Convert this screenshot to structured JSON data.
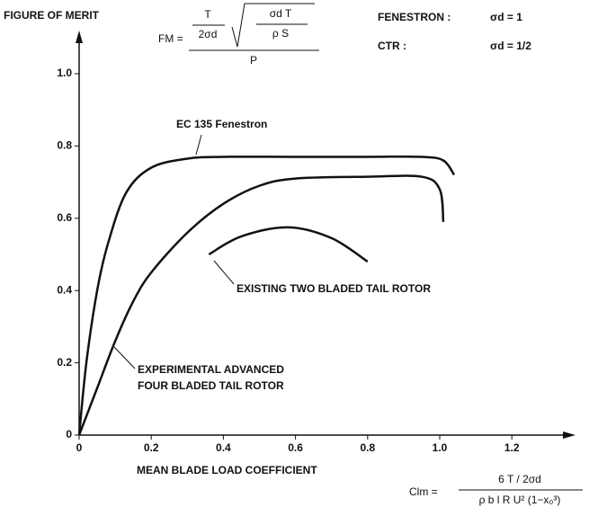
{
  "chart_data": {
    "type": "line",
    "y_label": "FIGURE OF MERIT",
    "x_label": "MEAN BLADE LOAD COEFFICIENT",
    "xlim": [
      0,
      1.36
    ],
    "ylim": [
      0,
      1.1
    ],
    "xticks": [
      0,
      0.2,
      0.4,
      0.6,
      0.8,
      {
        "value": 1,
        "label": "1.0"
      },
      1.2
    ],
    "yticks": [
      0,
      0.2,
      0.4,
      0.6,
      0.8,
      {
        "value": 1,
        "label": "1.0"
      }
    ],
    "color": "#111111",
    "series": [
      {
        "x": [
          0,
          0.02,
          0.05,
          0.08,
          0.13,
          0.2,
          0.3,
          0.4,
          0.6,
          0.8,
          0.95,
          1.01,
          1.04
        ],
        "values": [
          0,
          0.2,
          0.4,
          0.53,
          0.67,
          0.74,
          0.765,
          0.77,
          0.77,
          0.77,
          0.77,
          0.76,
          0.72
        ]
      },
      {
        "x": [
          0,
          0.05,
          0.1,
          0.15,
          0.2,
          0.3,
          0.4,
          0.5,
          0.6,
          0.8,
          0.95,
          1.0,
          1.01
        ],
        "values": [
          0,
          0.13,
          0.26,
          0.37,
          0.45,
          0.56,
          0.64,
          0.69,
          0.71,
          0.715,
          0.715,
          0.68,
          0.59
        ]
      },
      {
        "x": [
          0.36,
          0.45,
          0.58,
          0.7,
          0.8
        ],
        "values": [
          0.5,
          0.55,
          0.575,
          0.545,
          0.48
        ]
      }
    ],
    "annotations": [
      "EC 135 Fenestron",
      "EXISTING TWO BLADED TAIL ROTOR",
      "EXPERIMENTAL ADVANCED",
      "FOUR BLADED TAIL ROTOR"
    ],
    "formula_fm": {
      "lhs": "FM =",
      "num": "T",
      "num_den": "2σd",
      "root_num": "σd T",
      "root_den": "ρ S",
      "den": "P"
    },
    "sigma_notes": [
      {
        "name": "FENESTRON :",
        "value": "σd = 1"
      },
      {
        "name": "CTR :",
        "value": "σd = 1/2"
      }
    ],
    "formula_clm": {
      "lhs": "Clm =",
      "num": "6 T / 2σd",
      "den": "ρ b l R U² (1−x₀³)"
    }
  }
}
